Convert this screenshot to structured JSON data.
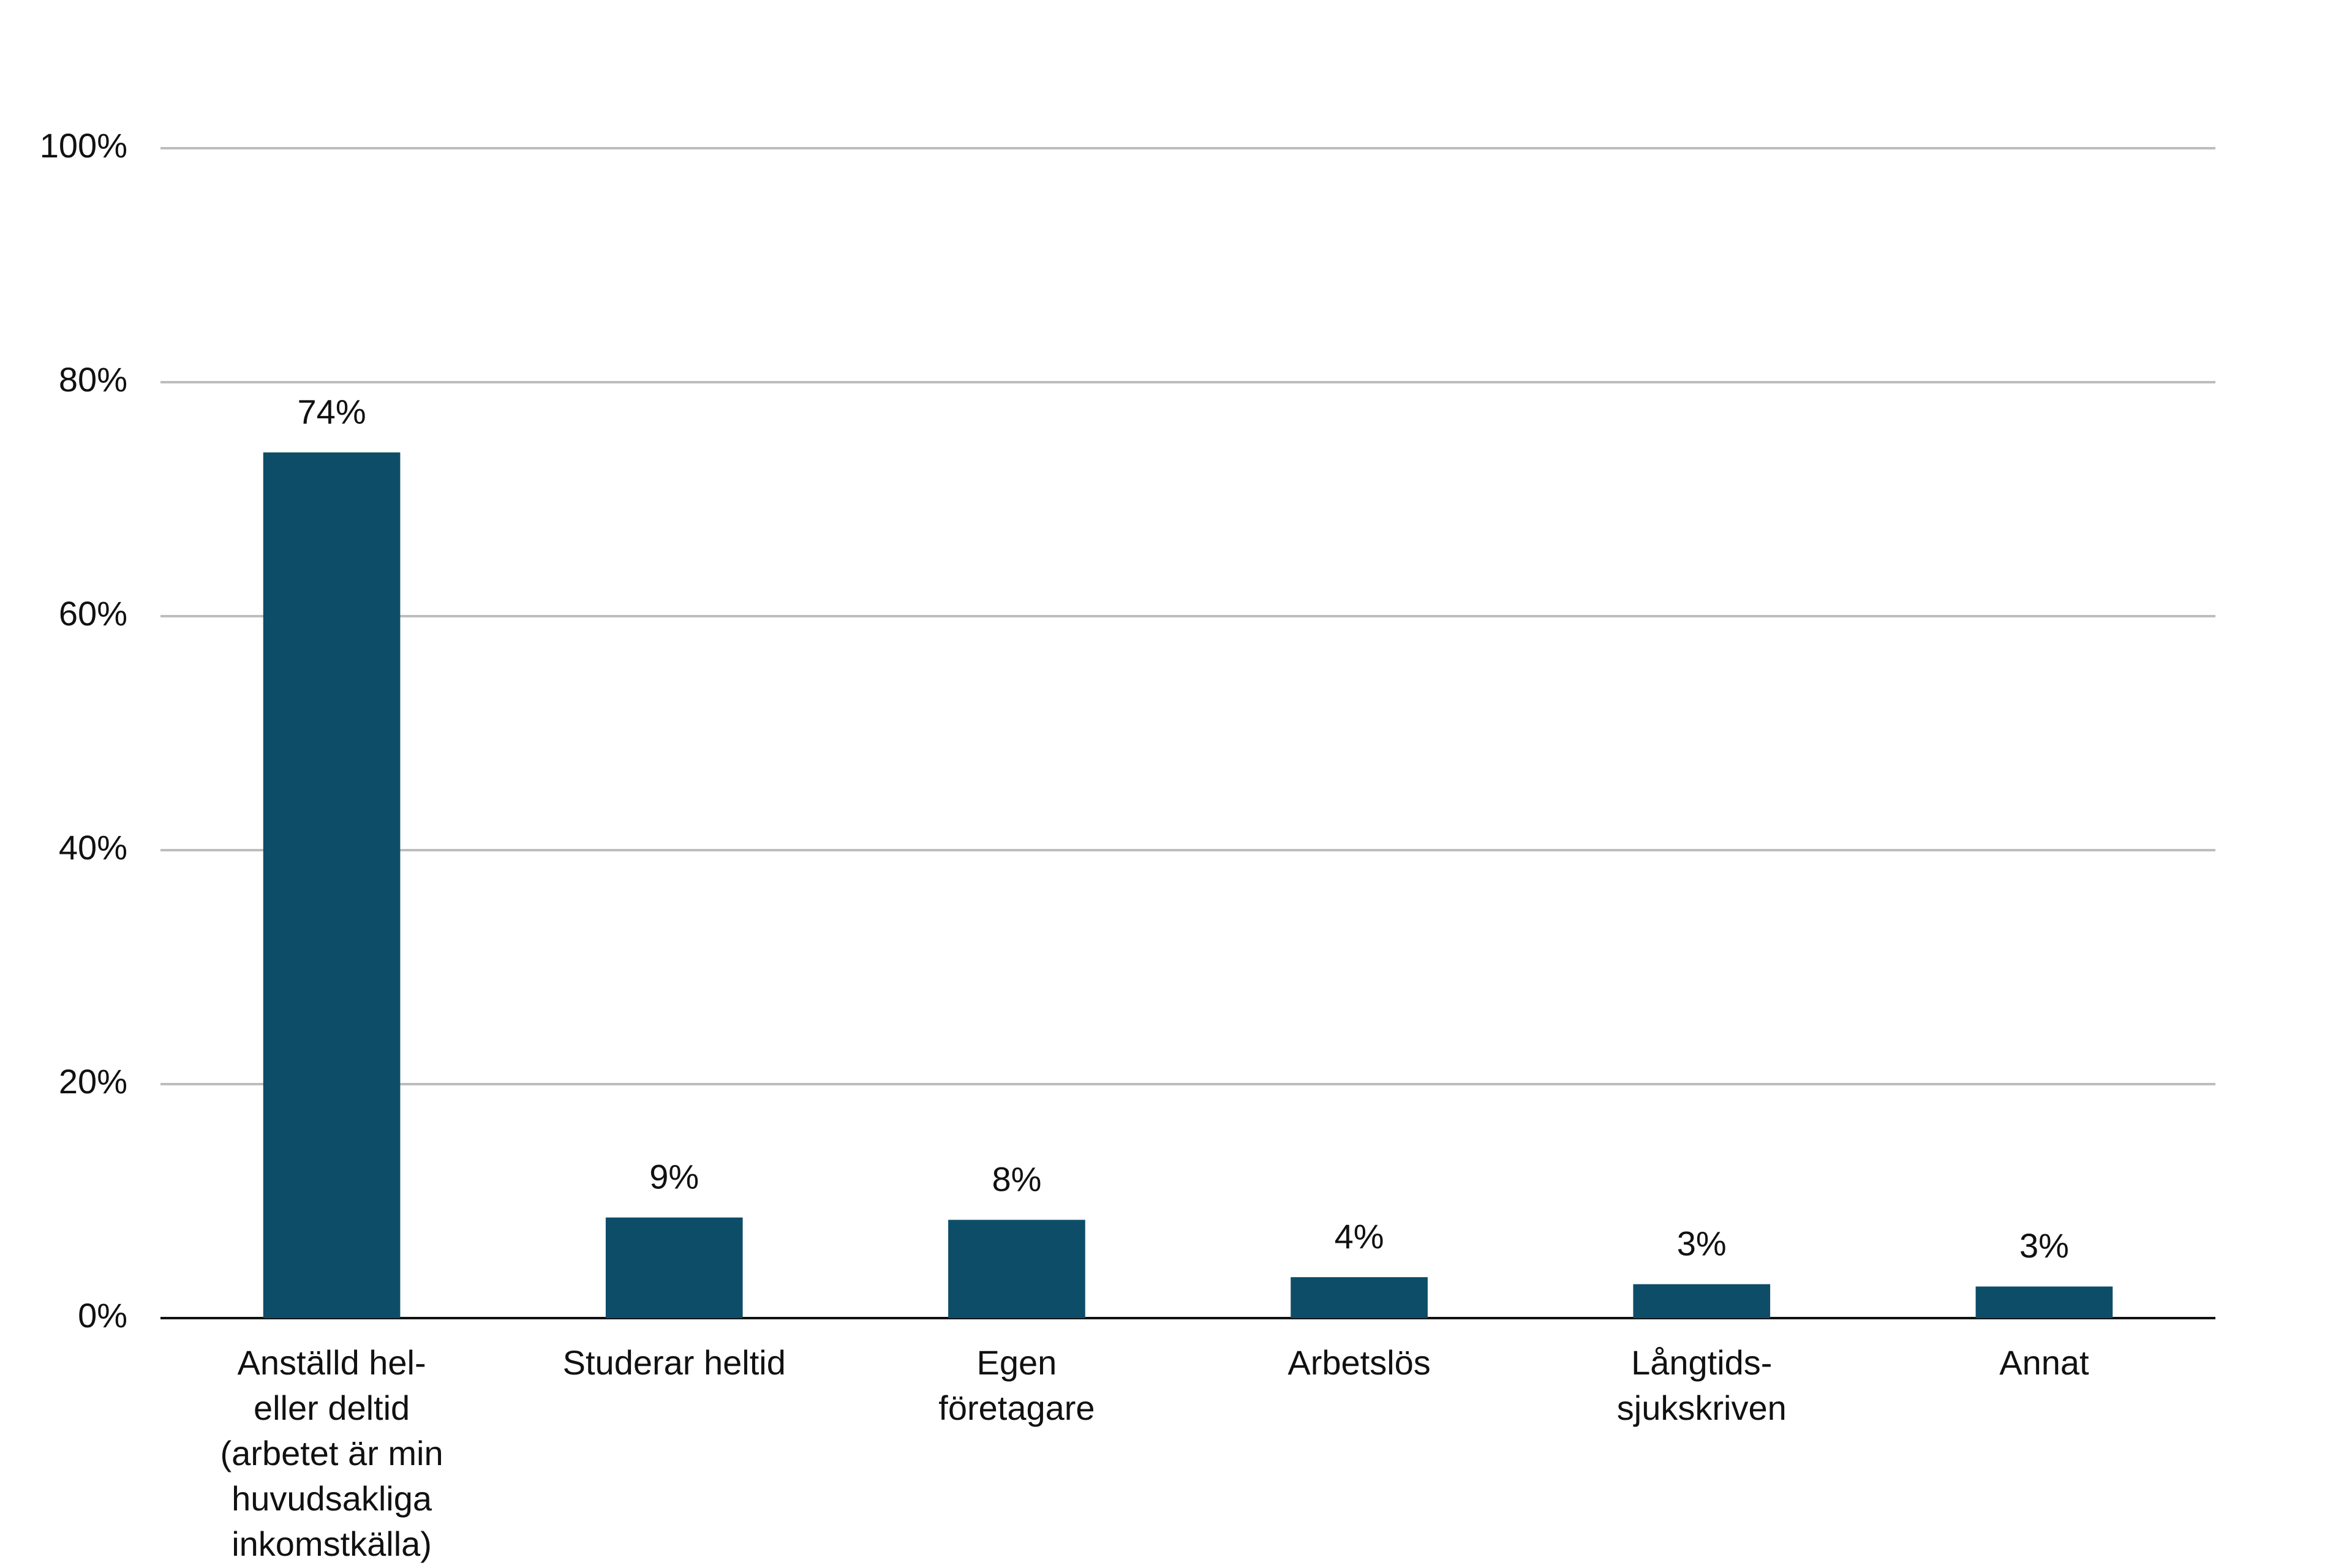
{
  "chart_data": {
    "type": "bar",
    "categories": [
      "Anställd hel-\neller deltid\n(arbetet är min\nhuvudsakliga\ninkomstkälla)",
      "Studerar heltid",
      "Egen\nföretagare",
      "Arbetslös",
      "Långtids-\nsjukskriven",
      "Annat"
    ],
    "values": [
      74,
      8.6,
      8.4,
      3.5,
      2.9,
      2.7
    ],
    "value_labels": [
      "74%",
      "9%",
      "8%",
      "4%",
      "3%",
      "3%"
    ],
    "color": "#0d4d68",
    "ylim": [
      0,
      100
    ],
    "yticks": [
      {
        "value": 0,
        "label": "0%"
      },
      {
        "value": 20,
        "label": "20%"
      },
      {
        "value": 40,
        "label": "40%"
      },
      {
        "value": 60,
        "label": "60%"
      },
      {
        "value": 80,
        "label": "80%"
      },
      {
        "value": 100,
        "label": "100%"
      }
    ],
    "grid": true
  }
}
